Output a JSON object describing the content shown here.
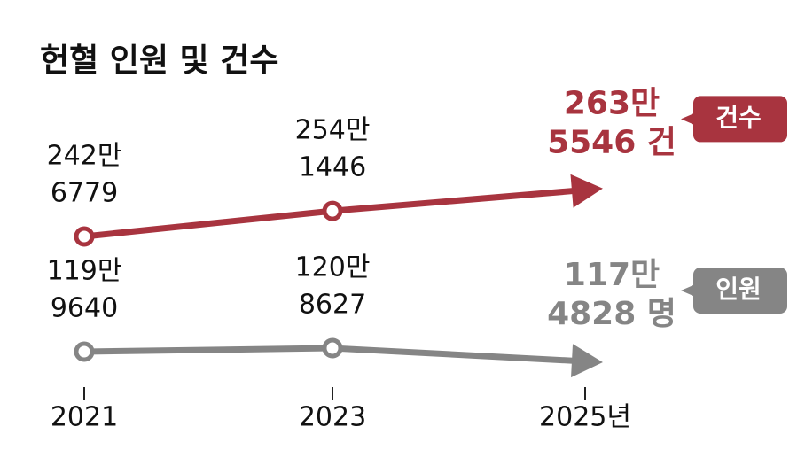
{
  "chart_data": {
    "type": "line",
    "title": "헌혈 인원 및 건수",
    "categories": [
      "2021",
      "2023",
      "2025년"
    ],
    "series": [
      {
        "name": "건수",
        "color": "#a8343f",
        "values": [
          2426779,
          2541446,
          2635546
        ],
        "value_labels": [
          [
            "242만",
            "6779"
          ],
          [
            "254만",
            "1446"
          ],
          [
            "263만",
            "5546 건"
          ]
        ]
      },
      {
        "name": "인원",
        "color": "#858585",
        "axis": "y2",
        "values": [
          1199640,
          1208627,
          1174828
        ],
        "value_labels": [
          [
            "119만",
            "9640"
          ],
          [
            "120만",
            "8627"
          ],
          [
            "117만",
            "4828 명"
          ]
        ]
      }
    ],
    "ylim": [
      1700000,
      3090000
    ],
    "y2lim": [
      1080000,
      1870000
    ]
  }
}
